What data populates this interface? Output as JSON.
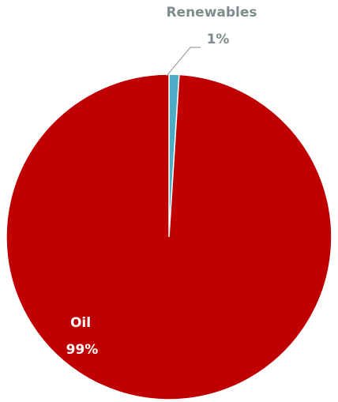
{
  "chart_data": {
    "type": "pie",
    "title": "",
    "slices": [
      {
        "label": "Renewables",
        "value": 1,
        "value_label": "1%",
        "color": "#4bacc6",
        "label_color": "#7f8c8d"
      },
      {
        "label": "Oil",
        "value": 99,
        "value_label": "99%",
        "color": "#c00000",
        "label_color": "#ffffff"
      }
    ],
    "start_angle_deg": 0,
    "direction": "clockwise",
    "legend": "none",
    "data_labels": true,
    "slice_border_color": "#ffffff"
  }
}
